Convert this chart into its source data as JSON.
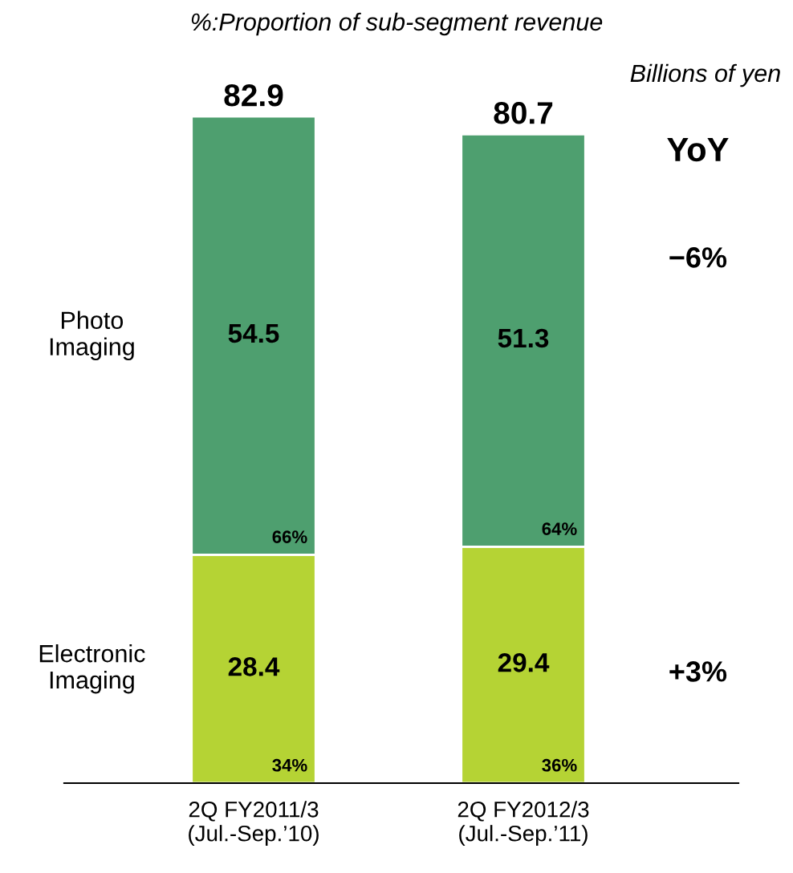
{
  "chart_data": {
    "type": "bar",
    "stacked": true,
    "title": "%:Proportion of sub-segment revenue",
    "categories": [
      "2Q FY2011/3\n(Jul.-Sep.’10)",
      "2Q FY2012/3\n(Jul.-Sep.’11)"
    ],
    "series": [
      {
        "name": "Electronic\nImaging",
        "color": "#b5d334",
        "values": [
          28.4,
          29.4
        ]
      },
      {
        "name": "Photo\nImaging",
        "color": "#4e9f6f",
        "values": [
          54.5,
          51.3
        ]
      }
    ],
    "data_labels": true,
    "totals": [
      "82.9",
      "80.7"
    ],
    "annotations": [
      "Billions of yen",
      "YoY",
      "−6%",
      "+3%",
      "66%",
      "34%",
      "64%",
      "36%"
    ],
    "legend": false,
    "grid": false
  }
}
